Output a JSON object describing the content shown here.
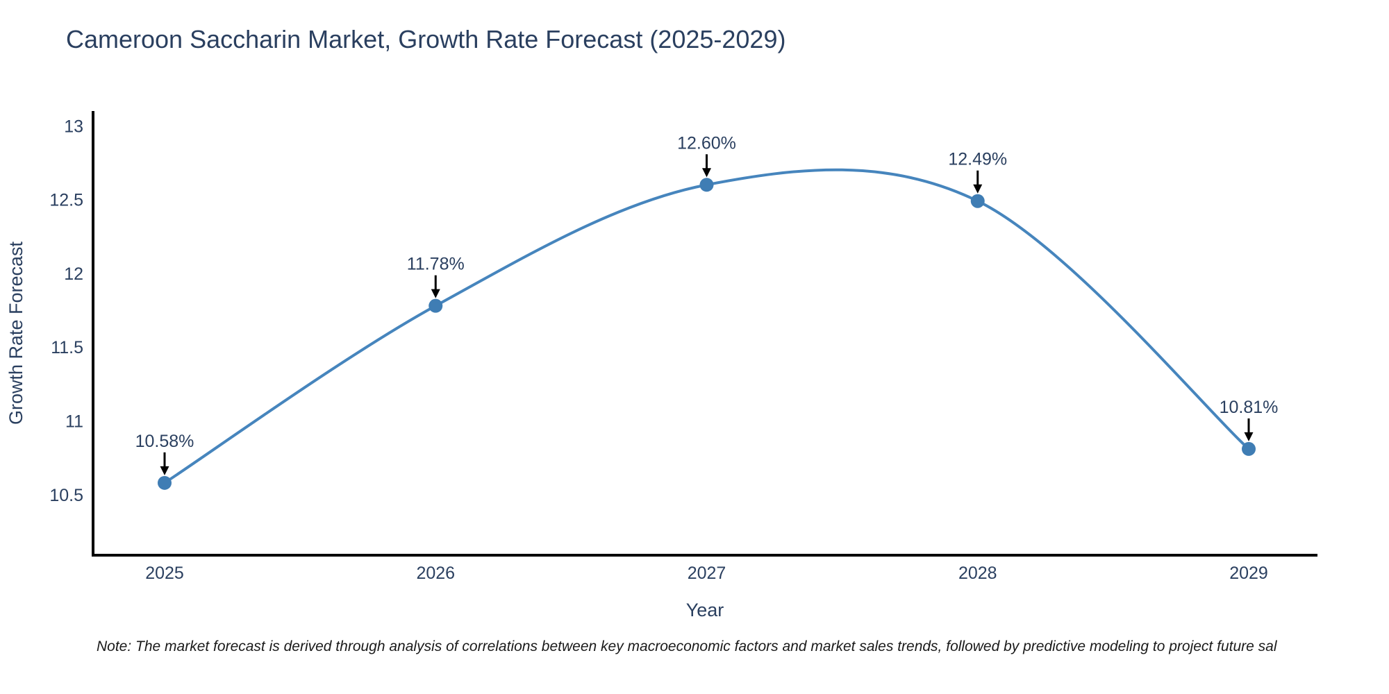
{
  "note": "Note: The market forecast is derived through analysis of correlations between key macroeconomic factors and market sales trends, followed by predictive modeling to project future sal",
  "chart_data": {
    "type": "line",
    "title": "Cameroon Saccharin Market, Growth Rate Forecast (2025-2029)",
    "xlabel": "Year",
    "ylabel": "Growth Rate Forecast",
    "categories": [
      "2025",
      "2026",
      "2027",
      "2028",
      "2029"
    ],
    "values": [
      10.58,
      11.78,
      12.6,
      12.49,
      10.81
    ],
    "point_labels": [
      "10.58%",
      "11.78%",
      "12.60%",
      "12.49%",
      "10.81%"
    ],
    "ytick_values": [
      10.5,
      11,
      11.5,
      12,
      12.5,
      13
    ],
    "ytick_labels": [
      "10.5",
      "11",
      "11.5",
      "12",
      "12.5",
      "13"
    ],
    "ylim": [
      10.09,
      13.1
    ],
    "line_shape": "spline",
    "grid": false,
    "legend": false,
    "annotation_style": "value-label-with-down-arrow",
    "colors": {
      "line": "#4685bd",
      "marker": "#3f7db4",
      "axis": "#000000",
      "text": "#2a3f5f",
      "annotation_arrow": "#000000",
      "note_text": "#1a1a1a"
    }
  }
}
